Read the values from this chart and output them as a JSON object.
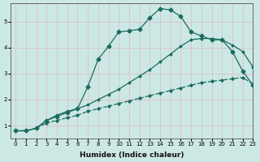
{
  "title": "",
  "xlabel": "Humidex (Indice chaleur)",
  "bg_color": "#cce8e4",
  "line_color": "#1a6b5e",
  "grid_color": "#e0b8c8",
  "xlim": [
    -0.5,
    23
  ],
  "ylim": [
    0.5,
    5.7
  ],
  "xticks": [
    0,
    1,
    2,
    3,
    4,
    5,
    6,
    7,
    8,
    9,
    10,
    11,
    12,
    13,
    14,
    15,
    16,
    17,
    18,
    19,
    20,
    21,
    22,
    23
  ],
  "yticks": [
    1,
    2,
    3,
    4,
    5
  ],
  "curve1_x": [
    0,
    1,
    2,
    3,
    4,
    5,
    6,
    7,
    8,
    9,
    10,
    11,
    12,
    13,
    14,
    15,
    16,
    17,
    18,
    19,
    20,
    21,
    22,
    23
  ],
  "curve1_y": [
    0.8,
    0.8,
    0.9,
    1.1,
    1.2,
    1.3,
    1.4,
    1.55,
    1.65,
    1.75,
    1.85,
    1.95,
    2.05,
    2.15,
    2.25,
    2.35,
    2.45,
    2.55,
    2.65,
    2.7,
    2.75,
    2.8,
    2.85,
    2.6
  ],
  "curve2_x": [
    0,
    1,
    2,
    3,
    4,
    5,
    6,
    7,
    8,
    9,
    10,
    11,
    12,
    13,
    14,
    15,
    16,
    17,
    18,
    19,
    20,
    21,
    22,
    23
  ],
  "curve2_y": [
    0.8,
    0.8,
    0.9,
    1.2,
    1.35,
    1.5,
    1.65,
    2.5,
    3.55,
    4.05,
    4.6,
    4.65,
    4.7,
    5.15,
    5.5,
    5.45,
    5.2,
    4.6,
    4.45,
    4.3,
    4.3,
    3.85,
    3.1,
    2.55
  ],
  "curve3_x": [
    0,
    1,
    2,
    3,
    4,
    5,
    6,
    7,
    8,
    9,
    10,
    11,
    12,
    13,
    14,
    15,
    16,
    17,
    18,
    19,
    20,
    21,
    22,
    23
  ],
  "curve3_y": [
    0.8,
    0.8,
    0.9,
    1.2,
    1.4,
    1.55,
    1.65,
    1.8,
    2.0,
    2.2,
    2.4,
    2.65,
    2.9,
    3.15,
    3.45,
    3.75,
    4.05,
    4.3,
    4.35,
    4.35,
    4.3,
    4.1,
    3.85,
    3.25
  ],
  "marker_size": 2.5,
  "line_width": 0.9,
  "tick_fontsize": 5.0,
  "xlabel_fontsize": 6.5
}
